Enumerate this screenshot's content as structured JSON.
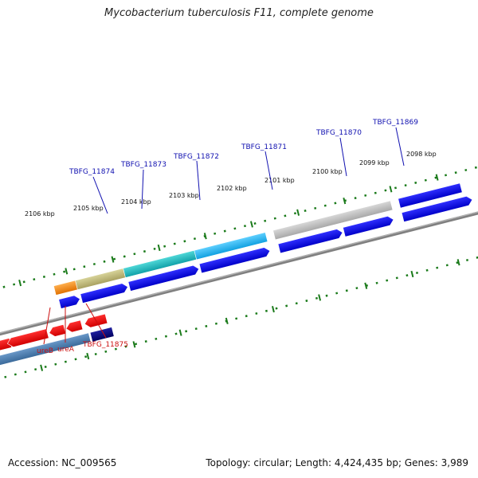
{
  "title": "Mycobacterium tuberculosis F11, complete genome",
  "footer": {
    "accession": "Accession: NC_009565",
    "stats": "Topology: circular; Length: 4,424,435 bp; Genes: 3,989"
  },
  "colors": {
    "backbone": "#808080",
    "ticks": "#1a7a1a",
    "forward_label": "#1010b0",
    "reverse_label": "#cc1010",
    "cds_forward": "#0000ee",
    "cds_reverse_red": "#ee0000",
    "cds_reverse_steel": "#4a7fb5",
    "cds_reverse_navy": "#000080"
  },
  "kbp_ticks": [
    {
      "label": "2106 kbp"
    },
    {
      "label": "2105 kbp"
    },
    {
      "label": "2104 kbp"
    },
    {
      "label": "2103 kbp"
    },
    {
      "label": "2102 kbp"
    },
    {
      "label": "2101 kbp"
    },
    {
      "label": "2100 kbp"
    },
    {
      "label": "2099 kbp"
    },
    {
      "label": "2098 kbp"
    }
  ],
  "forward_genes": [
    {
      "label": "TBFG_11874"
    },
    {
      "label": "TBFG_11873"
    },
    {
      "label": "TBFG_11872"
    },
    {
      "label": "TBFG_11871"
    },
    {
      "label": "TBFG_11870"
    },
    {
      "label": "TBFG_11869"
    }
  ],
  "reverse_genes": [
    {
      "label": "ureB"
    },
    {
      "label": "ureA"
    },
    {
      "label": "TBFG_11875"
    }
  ]
}
